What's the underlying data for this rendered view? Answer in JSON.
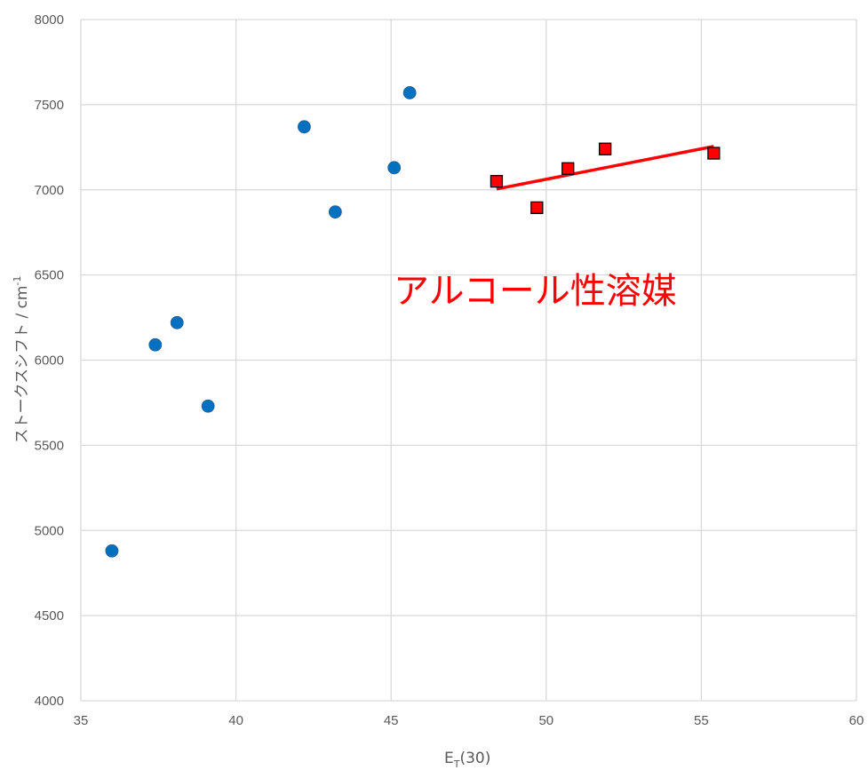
{
  "chart_data": {
    "type": "scatter",
    "xlabel_main": "E",
    "xlabel_sub": "T",
    "xlabel_tail": "(30)",
    "ylabel_main": "ストークスシフト / cm",
    "ylabel_sup": "-1",
    "xlim": [
      35,
      60
    ],
    "ylim": [
      4000,
      8000
    ],
    "x_ticks": [
      "35",
      "40",
      "45",
      "50",
      "55",
      "60"
    ],
    "y_ticks": [
      "4000",
      "4500",
      "5000",
      "5500",
      "6000",
      "6500",
      "7000",
      "7500",
      "8000"
    ],
    "grid": true,
    "series": [
      {
        "marker": "circle",
        "color": "#0070c0",
        "x": [
          36.0,
          37.4,
          38.1,
          39.1,
          42.2,
          43.2,
          45.1,
          45.6
        ],
        "y": [
          4880,
          6090,
          6220,
          5730,
          7370,
          6870,
          7130,
          7570
        ]
      },
      {
        "marker": "square",
        "color": "#ff0000",
        "x": [
          48.4,
          49.7,
          50.7,
          51.9,
          55.4
        ],
        "y": [
          7050,
          6895,
          7125,
          7240,
          7215
        ]
      }
    ],
    "trendline": {
      "color": "#ff0000",
      "x": [
        48.4,
        55.4
      ],
      "y": [
        7005,
        7255
      ]
    },
    "annotation": "アルコール性溶媒"
  }
}
